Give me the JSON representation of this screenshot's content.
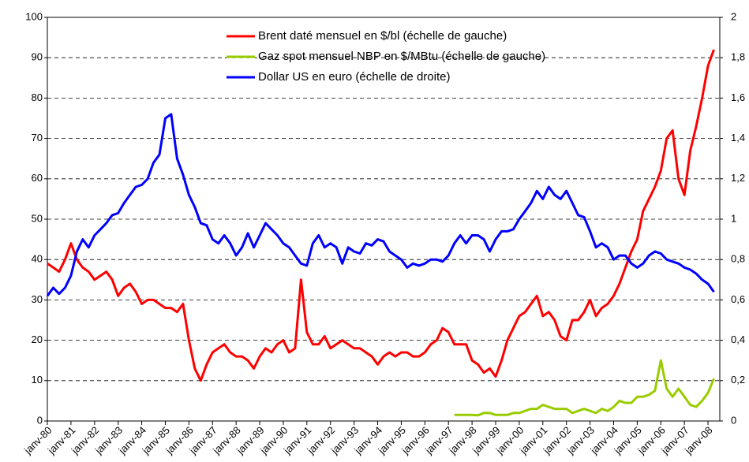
{
  "chart_data": {
    "type": "line",
    "categories": [
      "janv-80",
      null,
      null,
      null,
      "janv-81",
      null,
      null,
      null,
      "janv-82",
      null,
      null,
      null,
      "janv-83",
      null,
      null,
      null,
      "janv-84",
      null,
      null,
      null,
      "janv-85",
      null,
      null,
      null,
      "janv-86",
      null,
      null,
      null,
      "janv-87",
      null,
      null,
      null,
      "janv-88",
      null,
      null,
      null,
      "janv-89",
      null,
      null,
      null,
      "janv-90",
      null,
      null,
      null,
      "janv-91",
      null,
      null,
      null,
      "janv-92",
      null,
      null,
      null,
      "janv-93",
      null,
      null,
      null,
      "janv-94",
      null,
      null,
      null,
      "janv-95",
      null,
      null,
      null,
      "janv-96",
      null,
      null,
      null,
      "janv-97",
      null,
      null,
      null,
      "janv-98",
      null,
      null,
      null,
      "janv-99",
      null,
      null,
      null,
      "janv-00",
      null,
      null,
      null,
      "janv-01",
      null,
      null,
      null,
      "janv-02",
      null,
      null,
      null,
      "janv-03",
      null,
      null,
      null,
      "janv-04",
      null,
      null,
      null,
      "janv-05",
      null,
      null,
      null,
      "janv-06",
      null,
      null,
      null,
      "janv-07",
      null,
      null,
      null,
      "janv-08",
      null
    ],
    "series": [
      {
        "name": "Brent daté mensuel en $/bl (échelle de gauche)",
        "color": "#ff0000",
        "axis": "y",
        "values": [
          39,
          38,
          37,
          40,
          44,
          40,
          38,
          37,
          35,
          36,
          37,
          35,
          31,
          33,
          34,
          32,
          29,
          30,
          30,
          29,
          28,
          28,
          27,
          29,
          20,
          13,
          10,
          14,
          17,
          18,
          19,
          17,
          16,
          16,
          15,
          13,
          16,
          18,
          17,
          19,
          20,
          17,
          18,
          35,
          22,
          19,
          19,
          21,
          18,
          19,
          20,
          19,
          18,
          18,
          17,
          16,
          14,
          16,
          17,
          16,
          17,
          17,
          16,
          16,
          17,
          19,
          20,
          23,
          22,
          19,
          19,
          19,
          15,
          14,
          12,
          13,
          11,
          15,
          20,
          23,
          26,
          27,
          29,
          31,
          26,
          27,
          25,
          21,
          20,
          25,
          25,
          27,
          30,
          26,
          28,
          29,
          31,
          34,
          38,
          42,
          45,
          52,
          55,
          58,
          62,
          70,
          72,
          60,
          56,
          67,
          73,
          80,
          88,
          92
        ]
      },
      {
        "name": "Gaz spot mensuel NBP en $/MBtu (échelle de gauche)",
        "color": "#99cc00",
        "axis": "y",
        "values": [
          null,
          null,
          null,
          null,
          null,
          null,
          null,
          null,
          null,
          null,
          null,
          null,
          null,
          null,
          null,
          null,
          null,
          null,
          null,
          null,
          null,
          null,
          null,
          null,
          null,
          null,
          null,
          null,
          null,
          null,
          null,
          null,
          null,
          null,
          null,
          null,
          null,
          null,
          null,
          null,
          null,
          null,
          null,
          null,
          null,
          null,
          null,
          null,
          null,
          null,
          null,
          null,
          null,
          null,
          null,
          null,
          null,
          null,
          null,
          null,
          null,
          null,
          null,
          null,
          null,
          null,
          null,
          null,
          null,
          1.5,
          1.5,
          1.5,
          1.5,
          1.4,
          2,
          2,
          1.5,
          1.5,
          1.5,
          2,
          2,
          2.5,
          3,
          3,
          4,
          3.5,
          3,
          3,
          3,
          2,
          2.5,
          3,
          2.5,
          2,
          3,
          2.5,
          3.5,
          5,
          4.5,
          4.5,
          6,
          6,
          6.5,
          7.5,
          15,
          8,
          6,
          8,
          6,
          4,
          3.5,
          5,
          7,
          10.5
        ]
      },
      {
        "name": "Dollar US en euro (échelle de droite)",
        "color": "#0000ff",
        "axis": "y2",
        "values": [
          0.62,
          0.66,
          0.63,
          0.66,
          0.72,
          0.84,
          0.9,
          0.86,
          0.92,
          0.95,
          0.98,
          1.02,
          1.03,
          1.08,
          1.12,
          1.16,
          1.17,
          1.2,
          1.28,
          1.32,
          1.5,
          1.52,
          1.3,
          1.22,
          1.12,
          1.06,
          0.98,
          0.97,
          0.9,
          0.88,
          0.92,
          0.88,
          0.82,
          0.86,
          0.93,
          0.86,
          0.92,
          0.98,
          0.95,
          0.92,
          0.88,
          0.86,
          0.82,
          0.78,
          0.77,
          0.88,
          0.92,
          0.86,
          0.88,
          0.86,
          0.78,
          0.86,
          0.84,
          0.83,
          0.88,
          0.87,
          0.9,
          0.89,
          0.84,
          0.82,
          0.8,
          0.76,
          0.78,
          0.77,
          0.78,
          0.8,
          0.8,
          0.79,
          0.82,
          0.88,
          0.92,
          0.88,
          0.92,
          0.92,
          0.9,
          0.84,
          0.9,
          0.94,
          0.94,
          0.95,
          1.0,
          1.04,
          1.08,
          1.14,
          1.1,
          1.16,
          1.12,
          1.1,
          1.14,
          1.08,
          1.02,
          1.01,
          0.94,
          0.86,
          0.88,
          0.86,
          0.8,
          0.82,
          0.82,
          0.78,
          0.76,
          0.78,
          0.82,
          0.84,
          0.83,
          0.8,
          0.79,
          0.78,
          0.76,
          0.75,
          0.73,
          0.7,
          0.68,
          0.64
        ]
      }
    ],
    "ylim": [
      0,
      100
    ],
    "yticks": [
      0,
      10,
      20,
      30,
      40,
      50,
      60,
      70,
      80,
      90,
      100
    ],
    "y2lim": [
      0,
      2
    ],
    "y2ticks": [
      0,
      {
        "value": 0.2,
        "label": "0,2"
      },
      {
        "value": 0.4,
        "label": "0,4"
      },
      {
        "value": 0.6,
        "label": "0,6"
      },
      {
        "value": 0.8,
        "label": "0,8"
      },
      1,
      {
        "value": 1.2,
        "label": "1,2"
      },
      {
        "value": 1.4,
        "label": "1,4"
      },
      {
        "value": 1.6,
        "label": "1,6"
      },
      {
        "value": 1.8,
        "label": "1,8"
      },
      2
    ],
    "grid": true,
    "legend": "top"
  }
}
